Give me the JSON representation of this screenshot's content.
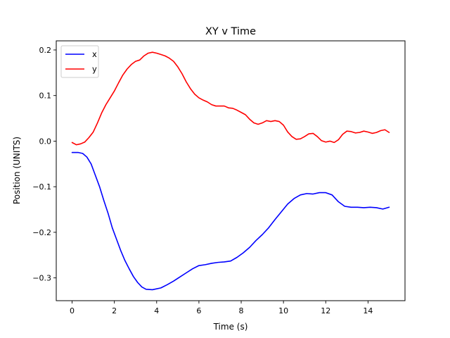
{
  "chart_data": {
    "type": "line",
    "title": "XY v Time",
    "xlabel": "Time (s)",
    "ylabel": "Position (UNITS)",
    "xlim": [
      -0.75,
      15.75
    ],
    "ylim": [
      -0.35,
      0.22
    ],
    "x_ticks": [
      0,
      2,
      4,
      6,
      8,
      10,
      12,
      14
    ],
    "y_ticks": [
      -0.3,
      -0.2,
      -0.1,
      0.0,
      0.1,
      0.2
    ],
    "x_tick_labels": [
      "0",
      "2",
      "4",
      "6",
      "8",
      "10",
      "12",
      "14"
    ],
    "y_tick_labels": [
      "−0.3",
      "−0.2",
      "−0.1",
      "0.0",
      "0.1",
      "0.2"
    ],
    "grid": false,
    "legend_position": "top-left",
    "series": [
      {
        "name": "x",
        "color": "#0000ff",
        "points": [
          [
            0,
            -0.025
          ],
          [
            0.3,
            -0.025
          ],
          [
            0.5,
            -0.027
          ],
          [
            0.7,
            -0.035
          ],
          [
            0.9,
            -0.05
          ],
          [
            1.1,
            -0.075
          ],
          [
            1.3,
            -0.1
          ],
          [
            1.5,
            -0.13
          ],
          [
            1.7,
            -0.158
          ],
          [
            1.9,
            -0.19
          ],
          [
            2.1,
            -0.215
          ],
          [
            2.3,
            -0.24
          ],
          [
            2.5,
            -0.262
          ],
          [
            2.7,
            -0.28
          ],
          [
            2.9,
            -0.297
          ],
          [
            3.1,
            -0.31
          ],
          [
            3.3,
            -0.32
          ],
          [
            3.5,
            -0.325
          ],
          [
            3.8,
            -0.326
          ],
          [
            4.2,
            -0.322
          ],
          [
            4.5,
            -0.315
          ],
          [
            4.8,
            -0.307
          ],
          [
            5.1,
            -0.298
          ],
          [
            5.4,
            -0.289
          ],
          [
            5.7,
            -0.28
          ],
          [
            6.0,
            -0.273
          ],
          [
            6.3,
            -0.271
          ],
          [
            6.6,
            -0.268
          ],
          [
            6.9,
            -0.266
          ],
          [
            7.2,
            -0.265
          ],
          [
            7.5,
            -0.263
          ],
          [
            7.8,
            -0.255
          ],
          [
            8.1,
            -0.245
          ],
          [
            8.4,
            -0.233
          ],
          [
            8.7,
            -0.218
          ],
          [
            9.0,
            -0.205
          ],
          [
            9.3,
            -0.19
          ],
          [
            9.6,
            -0.172
          ],
          [
            9.9,
            -0.155
          ],
          [
            10.2,
            -0.138
          ],
          [
            10.5,
            -0.126
          ],
          [
            10.8,
            -0.118
          ],
          [
            11.1,
            -0.115
          ],
          [
            11.4,
            -0.116
          ],
          [
            11.7,
            -0.113
          ],
          [
            12.0,
            -0.113
          ],
          [
            12.3,
            -0.118
          ],
          [
            12.6,
            -0.133
          ],
          [
            12.9,
            -0.143
          ],
          [
            13.2,
            -0.145
          ],
          [
            13.5,
            -0.145
          ],
          [
            13.8,
            -0.146
          ],
          [
            14.1,
            -0.145
          ],
          [
            14.4,
            -0.146
          ],
          [
            14.7,
            -0.149
          ],
          [
            15.0,
            -0.145
          ]
        ]
      },
      {
        "name": "y",
        "color": "#ff0000",
        "points": [
          [
            0,
            -0.003
          ],
          [
            0.2,
            -0.008
          ],
          [
            0.4,
            -0.006
          ],
          [
            0.6,
            -0.002
          ],
          [
            0.8,
            0.008
          ],
          [
            1.0,
            0.02
          ],
          [
            1.2,
            0.04
          ],
          [
            1.4,
            0.062
          ],
          [
            1.6,
            0.08
          ],
          [
            1.8,
            0.095
          ],
          [
            2.0,
            0.11
          ],
          [
            2.2,
            0.128
          ],
          [
            2.4,
            0.145
          ],
          [
            2.6,
            0.158
          ],
          [
            2.8,
            0.168
          ],
          [
            3.0,
            0.175
          ],
          [
            3.2,
            0.178
          ],
          [
            3.4,
            0.187
          ],
          [
            3.6,
            0.193
          ],
          [
            3.8,
            0.195
          ],
          [
            4.0,
            0.193
          ],
          [
            4.2,
            0.19
          ],
          [
            4.4,
            0.187
          ],
          [
            4.6,
            0.182
          ],
          [
            4.8,
            0.175
          ],
          [
            5.0,
            0.163
          ],
          [
            5.2,
            0.148
          ],
          [
            5.4,
            0.13
          ],
          [
            5.6,
            0.115
          ],
          [
            5.8,
            0.103
          ],
          [
            6.0,
            0.095
          ],
          [
            6.2,
            0.09
          ],
          [
            6.4,
            0.086
          ],
          [
            6.6,
            0.08
          ],
          [
            6.8,
            0.077
          ],
          [
            7.0,
            0.077
          ],
          [
            7.2,
            0.077
          ],
          [
            7.4,
            0.073
          ],
          [
            7.6,
            0.072
          ],
          [
            7.8,
            0.068
          ],
          [
            8.0,
            0.063
          ],
          [
            8.2,
            0.058
          ],
          [
            8.4,
            0.048
          ],
          [
            8.6,
            0.04
          ],
          [
            8.8,
            0.037
          ],
          [
            9.0,
            0.04
          ],
          [
            9.2,
            0.045
          ],
          [
            9.4,
            0.043
          ],
          [
            9.6,
            0.045
          ],
          [
            9.8,
            0.043
          ],
          [
            10.0,
            0.035
          ],
          [
            10.2,
            0.02
          ],
          [
            10.4,
            0.01
          ],
          [
            10.6,
            0.004
          ],
          [
            10.8,
            0.005
          ],
          [
            11.0,
            0.01
          ],
          [
            11.2,
            0.016
          ],
          [
            11.4,
            0.017
          ],
          [
            11.6,
            0.01
          ],
          [
            11.8,
            0.001
          ],
          [
            12.0,
            -0.002
          ],
          [
            12.2,
            0.0
          ],
          [
            12.4,
            -0.003
          ],
          [
            12.6,
            0.003
          ],
          [
            12.8,
            0.015
          ],
          [
            13.0,
            0.022
          ],
          [
            13.2,
            0.021
          ],
          [
            13.4,
            0.018
          ],
          [
            13.6,
            0.019
          ],
          [
            13.8,
            0.022
          ],
          [
            14.0,
            0.02
          ],
          [
            14.2,
            0.017
          ],
          [
            14.4,
            0.019
          ],
          [
            14.6,
            0.023
          ],
          [
            14.8,
            0.025
          ],
          [
            15.0,
            0.019
          ]
        ]
      }
    ]
  }
}
